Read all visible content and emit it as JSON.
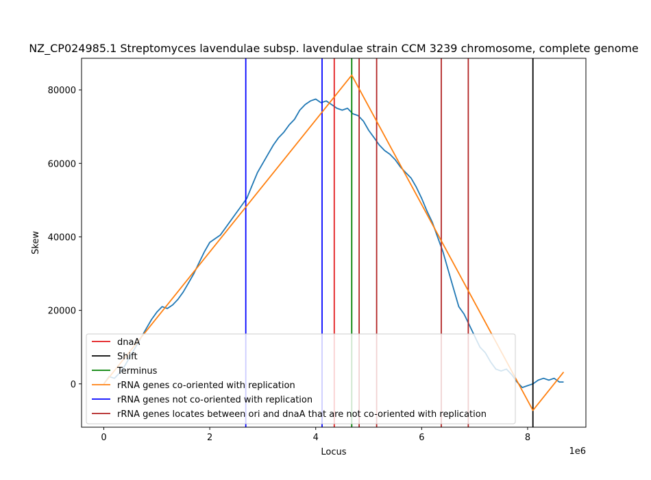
{
  "chart_data": {
    "type": "line",
    "title": "NZ_CP024985.1 Streptomyces lavendulae subsp. lavendulae strain CCM 3239 chromosome, complete genome",
    "xlabel": "Locus",
    "ylabel": "Skew",
    "x_offset_label": "1e6",
    "xlim": [
      -420000,
      9100000
    ],
    "ylim": [
      -11800,
      88600
    ],
    "x_ticks": [
      0,
      2000000,
      4000000,
      6000000,
      8000000
    ],
    "x_tick_labels": [
      "0",
      "2",
      "4",
      "6",
      "8"
    ],
    "y_ticks": [
      0,
      20000,
      40000,
      60000,
      80000
    ],
    "y_tick_labels": [
      "0",
      "20000",
      "40000",
      "60000",
      "80000"
    ],
    "grid": false,
    "legend_position": "lower-left",
    "colors": {
      "skew": "#1f77b4",
      "dnaA": "#e31a1c",
      "shift": "#000000",
      "terminus": "#008000",
      "co_oriented": "#ff7f0e",
      "not_co_oriented": "#0000ff",
      "between_ori_dnaA": "#b22222"
    },
    "skew_series": {
      "name": "",
      "x": [
        0,
        100000,
        200000,
        300000,
        400000,
        500000,
        600000,
        700000,
        800000,
        900000,
        1000000,
        1100000,
        1200000,
        1300000,
        1400000,
        1500000,
        1600000,
        1700000,
        1800000,
        1900000,
        2000000,
        2100000,
        2200000,
        2300000,
        2400000,
        2500000,
        2600000,
        2700000,
        2800000,
        2900000,
        3000000,
        3100000,
        3200000,
        3300000,
        3400000,
        3500000,
        3600000,
        3700000,
        3800000,
        3900000,
        4000000,
        4100000,
        4200000,
        4300000,
        4400000,
        4500000,
        4600000,
        4700000,
        4800000,
        4900000,
        5000000,
        5100000,
        5200000,
        5300000,
        5400000,
        5500000,
        5600000,
        5700000,
        5800000,
        5900000,
        6000000,
        6100000,
        6200000,
        6300000,
        6400000,
        6500000,
        6600000,
        6700000,
        6800000,
        6900000,
        7000000,
        7100000,
        7200000,
        7300000,
        7400000,
        7500000,
        7600000,
        7700000,
        7800000,
        7900000,
        8000000,
        8100000,
        8200000,
        8300000,
        8400000,
        8500000,
        8600000,
        8680000
      ],
      "y": [
        0,
        2000,
        1500,
        3000,
        5000,
        7500,
        10000,
        12500,
        15000,
        17500,
        19500,
        21000,
        20500,
        21500,
        23000,
        25000,
        27500,
        30000,
        33000,
        36000,
        38500,
        39500,
        40500,
        42500,
        44500,
        46500,
        48500,
        50500,
        54000,
        57500,
        60000,
        62500,
        65000,
        67000,
        68500,
        70500,
        72000,
        74500,
        76000,
        77000,
        77500,
        76500,
        77000,
        76000,
        75000,
        74500,
        75000,
        73500,
        73000,
        71500,
        69000,
        67000,
        65000,
        63500,
        62500,
        61000,
        59000,
        57500,
        56000,
        53500,
        50500,
        47000,
        44000,
        40000,
        36000,
        31000,
        26000,
        21000,
        19000,
        16000,
        13000,
        10000,
        8500,
        6000,
        4000,
        3500,
        4000,
        2500,
        500,
        -1000,
        -500,
        0,
        1000,
        1500,
        1000,
        1500,
        500,
        500
      ]
    },
    "co_oriented_series": {
      "name": "rRNA genes co-oriented with replication",
      "x": [
        0,
        4680000,
        8100000,
        8680000
      ],
      "y": [
        0,
        84000,
        -7200,
        3200
      ]
    },
    "vertical_lines": [
      {
        "series": "not_co_oriented",
        "x": 2680000
      },
      {
        "series": "not_co_oriented",
        "x": 4120000
      },
      {
        "series": "dnaA",
        "x": 4350000
      },
      {
        "series": "terminus",
        "x": 4680000
      },
      {
        "series": "between_ori_dnaA",
        "x": 4820000
      },
      {
        "series": "between_ori_dnaA",
        "x": 5150000
      },
      {
        "series": "between_ori_dnaA",
        "x": 6370000
      },
      {
        "series": "between_ori_dnaA",
        "x": 6880000
      },
      {
        "series": "shift",
        "x": 8100000
      }
    ],
    "legend": [
      {
        "key": "dnaA",
        "label": "dnaA"
      },
      {
        "key": "shift",
        "label": "Shift"
      },
      {
        "key": "terminus",
        "label": "Terminus"
      },
      {
        "key": "co_oriented",
        "label": "rRNA genes co-oriented with replication"
      },
      {
        "key": "not_co_oriented",
        "label": "rRNA genes not co-oriented with replication"
      },
      {
        "key": "between_ori_dnaA",
        "label": "rRNA genes locates between ori and dnaA that are not co-oriented with replication"
      }
    ]
  }
}
